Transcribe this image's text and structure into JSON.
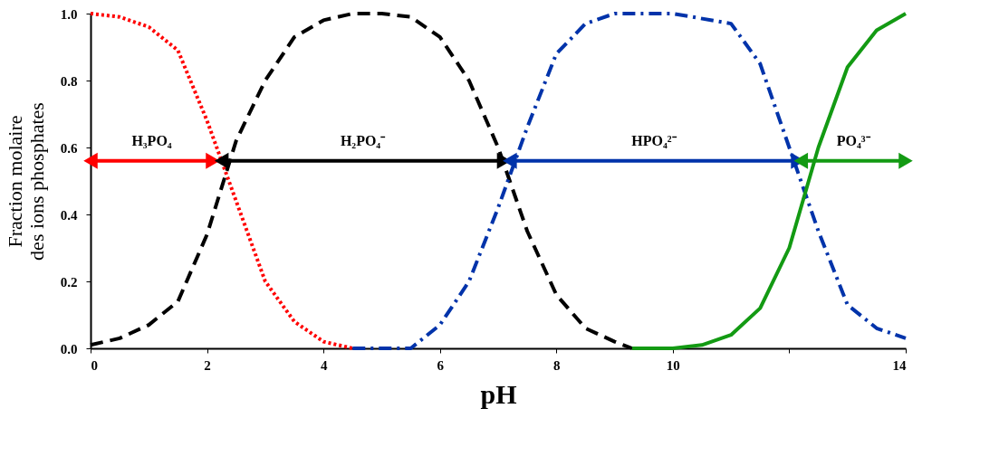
{
  "chart_data": {
    "type": "line",
    "xlabel": "pH",
    "ylabel": "Fraction molaire des ions phosphates",
    "xlim": [
      0,
      14
    ],
    "ylim": [
      0,
      1
    ],
    "xticks": [
      0,
      2,
      4,
      6,
      8,
      10,
      {
        "value": 12,
        "label": null
      },
      14
    ],
    "yticks": [
      {
        "value": 0,
        "label": "0.0"
      },
      {
        "value": 0.2,
        "label": "0.2"
      },
      {
        "value": 0.4,
        "label": "0.4"
      },
      {
        "value": 0.6,
        "label": "0.6"
      },
      {
        "value": 0.8,
        "label": "0.8"
      },
      {
        "value": 1,
        "label": "1.0"
      }
    ],
    "grid": false,
    "series": [
      {
        "color": "#ff0000",
        "line_style": "dotted",
        "x": [
          0,
          0.5,
          1,
          1.5,
          2,
          2.5,
          3,
          3.5,
          4,
          4.5
        ],
        "values": [
          1.0,
          0.99,
          0.96,
          0.89,
          0.68,
          0.44,
          0.2,
          0.08,
          0.02,
          0.0
        ]
      },
      {
        "color": "#000000",
        "line_style": "dashed",
        "x": [
          0,
          0.5,
          1,
          1.5,
          2,
          2.5,
          3,
          3.5,
          4,
          4.5,
          5,
          5.5,
          6,
          6.5,
          7,
          7.5,
          8,
          8.5,
          9,
          9.3
        ],
        "values": [
          0.01,
          0.03,
          0.07,
          0.14,
          0.34,
          0.62,
          0.8,
          0.93,
          0.98,
          1.0,
          1.0,
          0.99,
          0.93,
          0.8,
          0.6,
          0.35,
          0.16,
          0.06,
          0.02,
          0.0
        ]
      },
      {
        "color": "#0033aa",
        "line_style": "dashdot",
        "x": [
          4.5,
          5,
          5.5,
          6,
          6.5,
          7,
          7.5,
          8,
          8.5,
          9,
          10,
          11,
          11.5,
          12,
          12.5,
          13,
          13.5,
          14
        ],
        "values": [
          0.0,
          0.0,
          0.0,
          0.07,
          0.2,
          0.42,
          0.66,
          0.88,
          0.97,
          1.0,
          1.0,
          0.97,
          0.85,
          0.6,
          0.35,
          0.13,
          0.06,
          0.03
        ]
      },
      {
        "color": "#139a13",
        "line_style": "solid",
        "x": [
          9.3,
          10,
          10.5,
          11,
          11.5,
          12,
          12.5,
          13,
          13.5,
          14
        ],
        "values": [
          0.0,
          0.0,
          0.01,
          0.04,
          0.12,
          0.3,
          0.6,
          0.84,
          0.95,
          1.0
        ]
      },
      {
        "name": "H₃PO₄",
        "color": "#ff0000",
        "line_style": "solid",
        "marker": "triangle",
        "x": [
          0,
          2.1
        ],
        "values": [
          0.56,
          0.56
        ]
      },
      {
        "name": "H₂PO₄⁻",
        "color": "#000000",
        "line_style": "solid",
        "marker": "triangle",
        "x": [
          2.25,
          7.1
        ],
        "values": [
          0.56,
          0.56
        ]
      },
      {
        "name": "HPO₄²⁻",
        "color": "#0033aa",
        "line_style": "solid",
        "marker": "triangle",
        "x": [
          7.2,
          12.15
        ],
        "values": [
          0.56,
          0.56
        ]
      },
      {
        "name": "PO₄³⁻",
        "color": "#139a13",
        "line_style": "solid",
        "marker": "triangle",
        "x": [
          12.2,
          14
        ],
        "values": [
          0.56,
          0.56
        ]
      }
    ]
  }
}
